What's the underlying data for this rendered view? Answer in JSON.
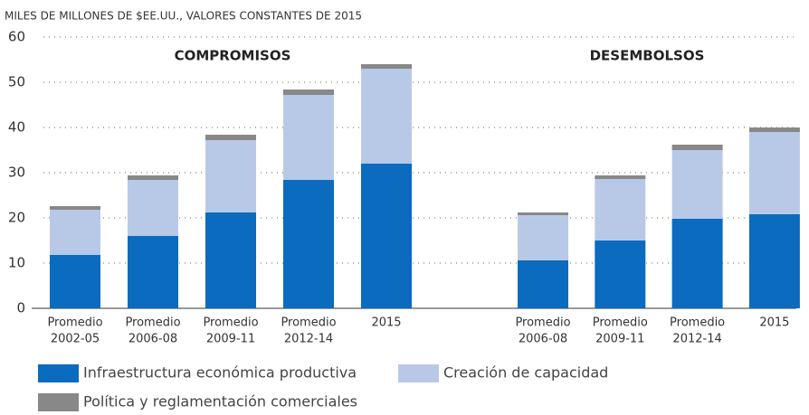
{
  "chart_data": {
    "type": "bar",
    "stacked": true,
    "y_label": "MILES DE MILLONES DE $EE.UU., VALORES CONSTANTES DE 2015",
    "ylim": [
      0,
      60
    ],
    "yticks": [
      0,
      10,
      20,
      30,
      40,
      50,
      60
    ],
    "grid": true,
    "series": [
      {
        "name": "Infraestructura económica productiva",
        "color": "#0a6bbf"
      },
      {
        "name": "Creación de capacidad",
        "color": "#b8c9e8"
      },
      {
        "name": "Política y reglamentación comerciales",
        "color": "#888888"
      }
    ],
    "groups": [
      {
        "title": "COMPROMISOS",
        "categories": [
          [
            "Promedio",
            "2002-05"
          ],
          [
            "Promedio",
            "2006-08"
          ],
          [
            "Promedio",
            "2009-11"
          ],
          [
            "Promedio",
            "2012-14"
          ],
          [
            "2015"
          ]
        ],
        "values": [
          [
            11.8,
            16,
            21.2,
            28.4,
            32
          ],
          [
            10,
            12.4,
            16,
            18.8,
            21
          ],
          [
            0.8,
            1,
            1.2,
            1.2,
            1
          ]
        ]
      },
      {
        "title": "DESEMBOLSOS",
        "categories": [
          [
            "Promedio",
            "2006-08"
          ],
          [
            "Promedio",
            "2009-11"
          ],
          [
            "Promedio",
            "2012-14"
          ],
          [
            "2015"
          ]
        ],
        "values": [
          [
            10.6,
            15,
            19.8,
            20.8
          ],
          [
            10,
            13.6,
            15.2,
            18.2
          ],
          [
            0.6,
            0.8,
            1.2,
            1
          ]
        ]
      }
    ]
  }
}
